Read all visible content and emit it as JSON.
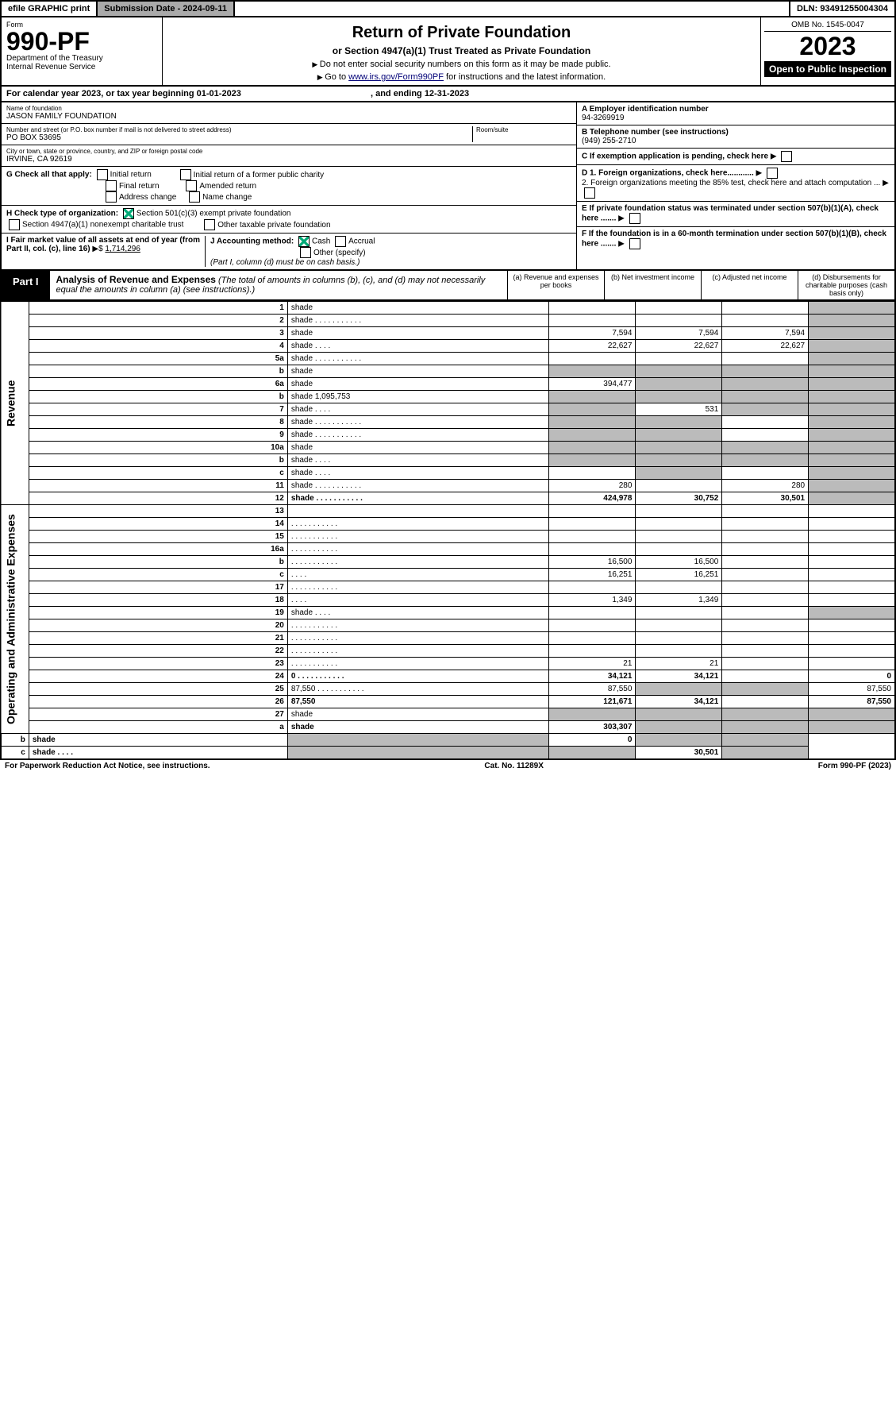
{
  "topbar": {
    "efile": "efile GRAPHIC print",
    "submission": "Submission Date - 2024-09-11",
    "dln": "DLN: 93491255004304"
  },
  "header": {
    "form_label": "Form",
    "form_no": "990-PF",
    "dept": "Department of the Treasury",
    "irs": "Internal Revenue Service",
    "title": "Return of Private Foundation",
    "subtitle": "or Section 4947(a)(1) Trust Treated as Private Foundation",
    "note1": "Do not enter social security numbers on this form as it may be made public.",
    "note2": "Go to ",
    "link": "www.irs.gov/Form990PF",
    "note3": " for instructions and the latest information.",
    "omb": "OMB No. 1545-0047",
    "year": "2023",
    "open": "Open to Public Inspection"
  },
  "cal": {
    "txt": "For calendar year 2023, or tax year beginning 01-01-2023",
    "end": ", and ending 12-31-2023"
  },
  "name": {
    "lbl": "Name of foundation",
    "val": "JASON FAMILY FOUNDATION"
  },
  "ein": {
    "lbl": "A Employer identification number",
    "val": "94-3269919"
  },
  "addr": {
    "lbl": "Number and street (or P.O. box number if mail is not delivered to street address)",
    "val": "PO BOX 53695",
    "room": "Room/suite"
  },
  "phone": {
    "lbl": "B Telephone number (see instructions)",
    "val": "(949) 255-2710"
  },
  "city": {
    "lbl": "City or town, state or province, country, and ZIP or foreign postal code",
    "val": "IRVINE, CA  92619"
  },
  "C": "C If exemption application is pending, check here",
  "G": {
    "lbl": "G Check all that apply:",
    "o1": "Initial return",
    "o2": "Initial return of a former public charity",
    "o3": "Final return",
    "o4": "Amended return",
    "o5": "Address change",
    "o6": "Name change"
  },
  "D": {
    "d1": "D 1. Foreign organizations, check here............",
    "d2": "2. Foreign organizations meeting the 85% test, check here and attach computation ..."
  },
  "H": {
    "lbl": "H Check type of organization:",
    "o1": "Section 501(c)(3) exempt private foundation",
    "o2": "Section 4947(a)(1) nonexempt charitable trust",
    "o3": "Other taxable private foundation"
  },
  "E": "E If private foundation status was terminated under section 507(b)(1)(A), check here .......",
  "I": {
    "lbl": "I Fair market value of all assets at end of year (from Part II, col. (c), line 16)",
    "val": "1,714,296"
  },
  "J": {
    "lbl": "J Accounting method:",
    "o1": "Cash",
    "o2": "Accrual",
    "o3": "Other (specify)",
    "note": "(Part I, column (d) must be on cash basis.)"
  },
  "F": "F If the foundation is in a 60-month termination under section 507(b)(1)(B), check here .......",
  "part1": {
    "tab": "Part I",
    "title": "Analysis of Revenue and Expenses",
    "note": "(The total of amounts in columns (b), (c), and (d) may not necessarily equal the amounts in column (a) (see instructions).)"
  },
  "cols": {
    "a": "(a) Revenue and expenses per books",
    "b": "(b) Net investment income",
    "c": "(c) Adjusted net income",
    "d": "(d) Disbursements for charitable purposes (cash basis only)"
  },
  "sides": {
    "rev": "Revenue",
    "exp": "Operating and Administrative Expenses"
  },
  "rows": [
    {
      "n": "1",
      "d": "shade",
      "a": "",
      "b": "",
      "c": ""
    },
    {
      "n": "2",
      "d": "shade",
      "dots": true,
      "a": "",
      "b": "",
      "c": ""
    },
    {
      "n": "3",
      "d": "shade",
      "a": "7,594",
      "b": "7,594",
      "c": "7,594"
    },
    {
      "n": "4",
      "d": "shade",
      "dots": "S",
      "a": "22,627",
      "b": "22,627",
      "c": "22,627"
    },
    {
      "n": "5a",
      "d": "shade",
      "dots": true,
      "a": "",
      "b": "",
      "c": ""
    },
    {
      "n": "b",
      "d": "shade",
      "a": "shade",
      "b": "shade",
      "c": "shade"
    },
    {
      "n": "6a",
      "d": "shade",
      "a": "394,477",
      "b": "shade",
      "c": "shade"
    },
    {
      "n": "b",
      "d": "shade",
      "inline": "1,095,753",
      "a": "shade",
      "b": "shade",
      "c": "shade"
    },
    {
      "n": "7",
      "d": "shade",
      "dots": "S",
      "a": "shade",
      "b": "531",
      "c": "shade"
    },
    {
      "n": "8",
      "d": "shade",
      "dots": true,
      "a": "shade",
      "b": "shade",
      "c": ""
    },
    {
      "n": "9",
      "d": "shade",
      "dots": true,
      "a": "shade",
      "b": "shade",
      "c": ""
    },
    {
      "n": "10a",
      "d": "shade",
      "a": "shade",
      "b": "shade",
      "c": "shade"
    },
    {
      "n": "b",
      "d": "shade",
      "dots": "S",
      "a": "shade",
      "b": "shade",
      "c": "shade"
    },
    {
      "n": "c",
      "d": "shade",
      "dots": "S",
      "a": "",
      "b": "shade",
      "c": ""
    },
    {
      "n": "11",
      "d": "shade",
      "dots": true,
      "a": "280",
      "b": "",
      "c": "280"
    },
    {
      "n": "12",
      "d": "shade",
      "dots": true,
      "bold": true,
      "a": "424,978",
      "b": "30,752",
      "c": "30,501"
    },
    {
      "n": "13",
      "d": "",
      "a": "",
      "b": "",
      "c": ""
    },
    {
      "n": "14",
      "d": "",
      "dots": true,
      "a": "",
      "b": "",
      "c": ""
    },
    {
      "n": "15",
      "d": "",
      "dots": true,
      "a": "",
      "b": "",
      "c": ""
    },
    {
      "n": "16a",
      "d": "",
      "dots": true,
      "a": "",
      "b": "",
      "c": ""
    },
    {
      "n": "b",
      "d": "",
      "dots": true,
      "a": "16,500",
      "b": "16,500",
      "c": ""
    },
    {
      "n": "c",
      "d": "",
      "dots": "S",
      "a": "16,251",
      "b": "16,251",
      "c": ""
    },
    {
      "n": "17",
      "d": "",
      "dots": true,
      "a": "",
      "b": "",
      "c": ""
    },
    {
      "n": "18",
      "d": "",
      "dots": "S",
      "a": "1,349",
      "b": "1,349",
      "c": ""
    },
    {
      "n": "19",
      "d": "shade",
      "dots": "S",
      "a": "",
      "b": "",
      "c": ""
    },
    {
      "n": "20",
      "d": "",
      "dots": true,
      "a": "",
      "b": "",
      "c": ""
    },
    {
      "n": "21",
      "d": "",
      "dots": true,
      "a": "",
      "b": "",
      "c": ""
    },
    {
      "n": "22",
      "d": "",
      "dots": true,
      "a": "",
      "b": "",
      "c": ""
    },
    {
      "n": "23",
      "d": "",
      "dots": true,
      "a": "21",
      "b": "21",
      "c": ""
    },
    {
      "n": "24",
      "d": "0",
      "dots": true,
      "bold": true,
      "a": "34,121",
      "b": "34,121",
      "c": ""
    },
    {
      "n": "25",
      "d": "87,550",
      "dots": true,
      "a": "87,550",
      "b": "shade",
      "c": "shade"
    },
    {
      "n": "26",
      "d": "87,550",
      "bold": true,
      "a": "121,671",
      "b": "34,121",
      "c": ""
    },
    {
      "n": "27",
      "d": "shade",
      "a": "shade",
      "b": "shade",
      "c": "shade"
    },
    {
      "n": "a",
      "d": "shade",
      "bold": true,
      "a": "303,307",
      "b": "shade",
      "c": "shade"
    },
    {
      "n": "b",
      "d": "shade",
      "bold": true,
      "a": "shade",
      "b": "0",
      "c": "shade"
    },
    {
      "n": "c",
      "d": "shade",
      "bold": true,
      "dots": "S",
      "a": "shade",
      "b": "shade",
      "c": "30,501"
    }
  ],
  "footer": {
    "l": "For Paperwork Reduction Act Notice, see instructions.",
    "c": "Cat. No. 11289X",
    "r": "Form 990-PF (2023)"
  }
}
